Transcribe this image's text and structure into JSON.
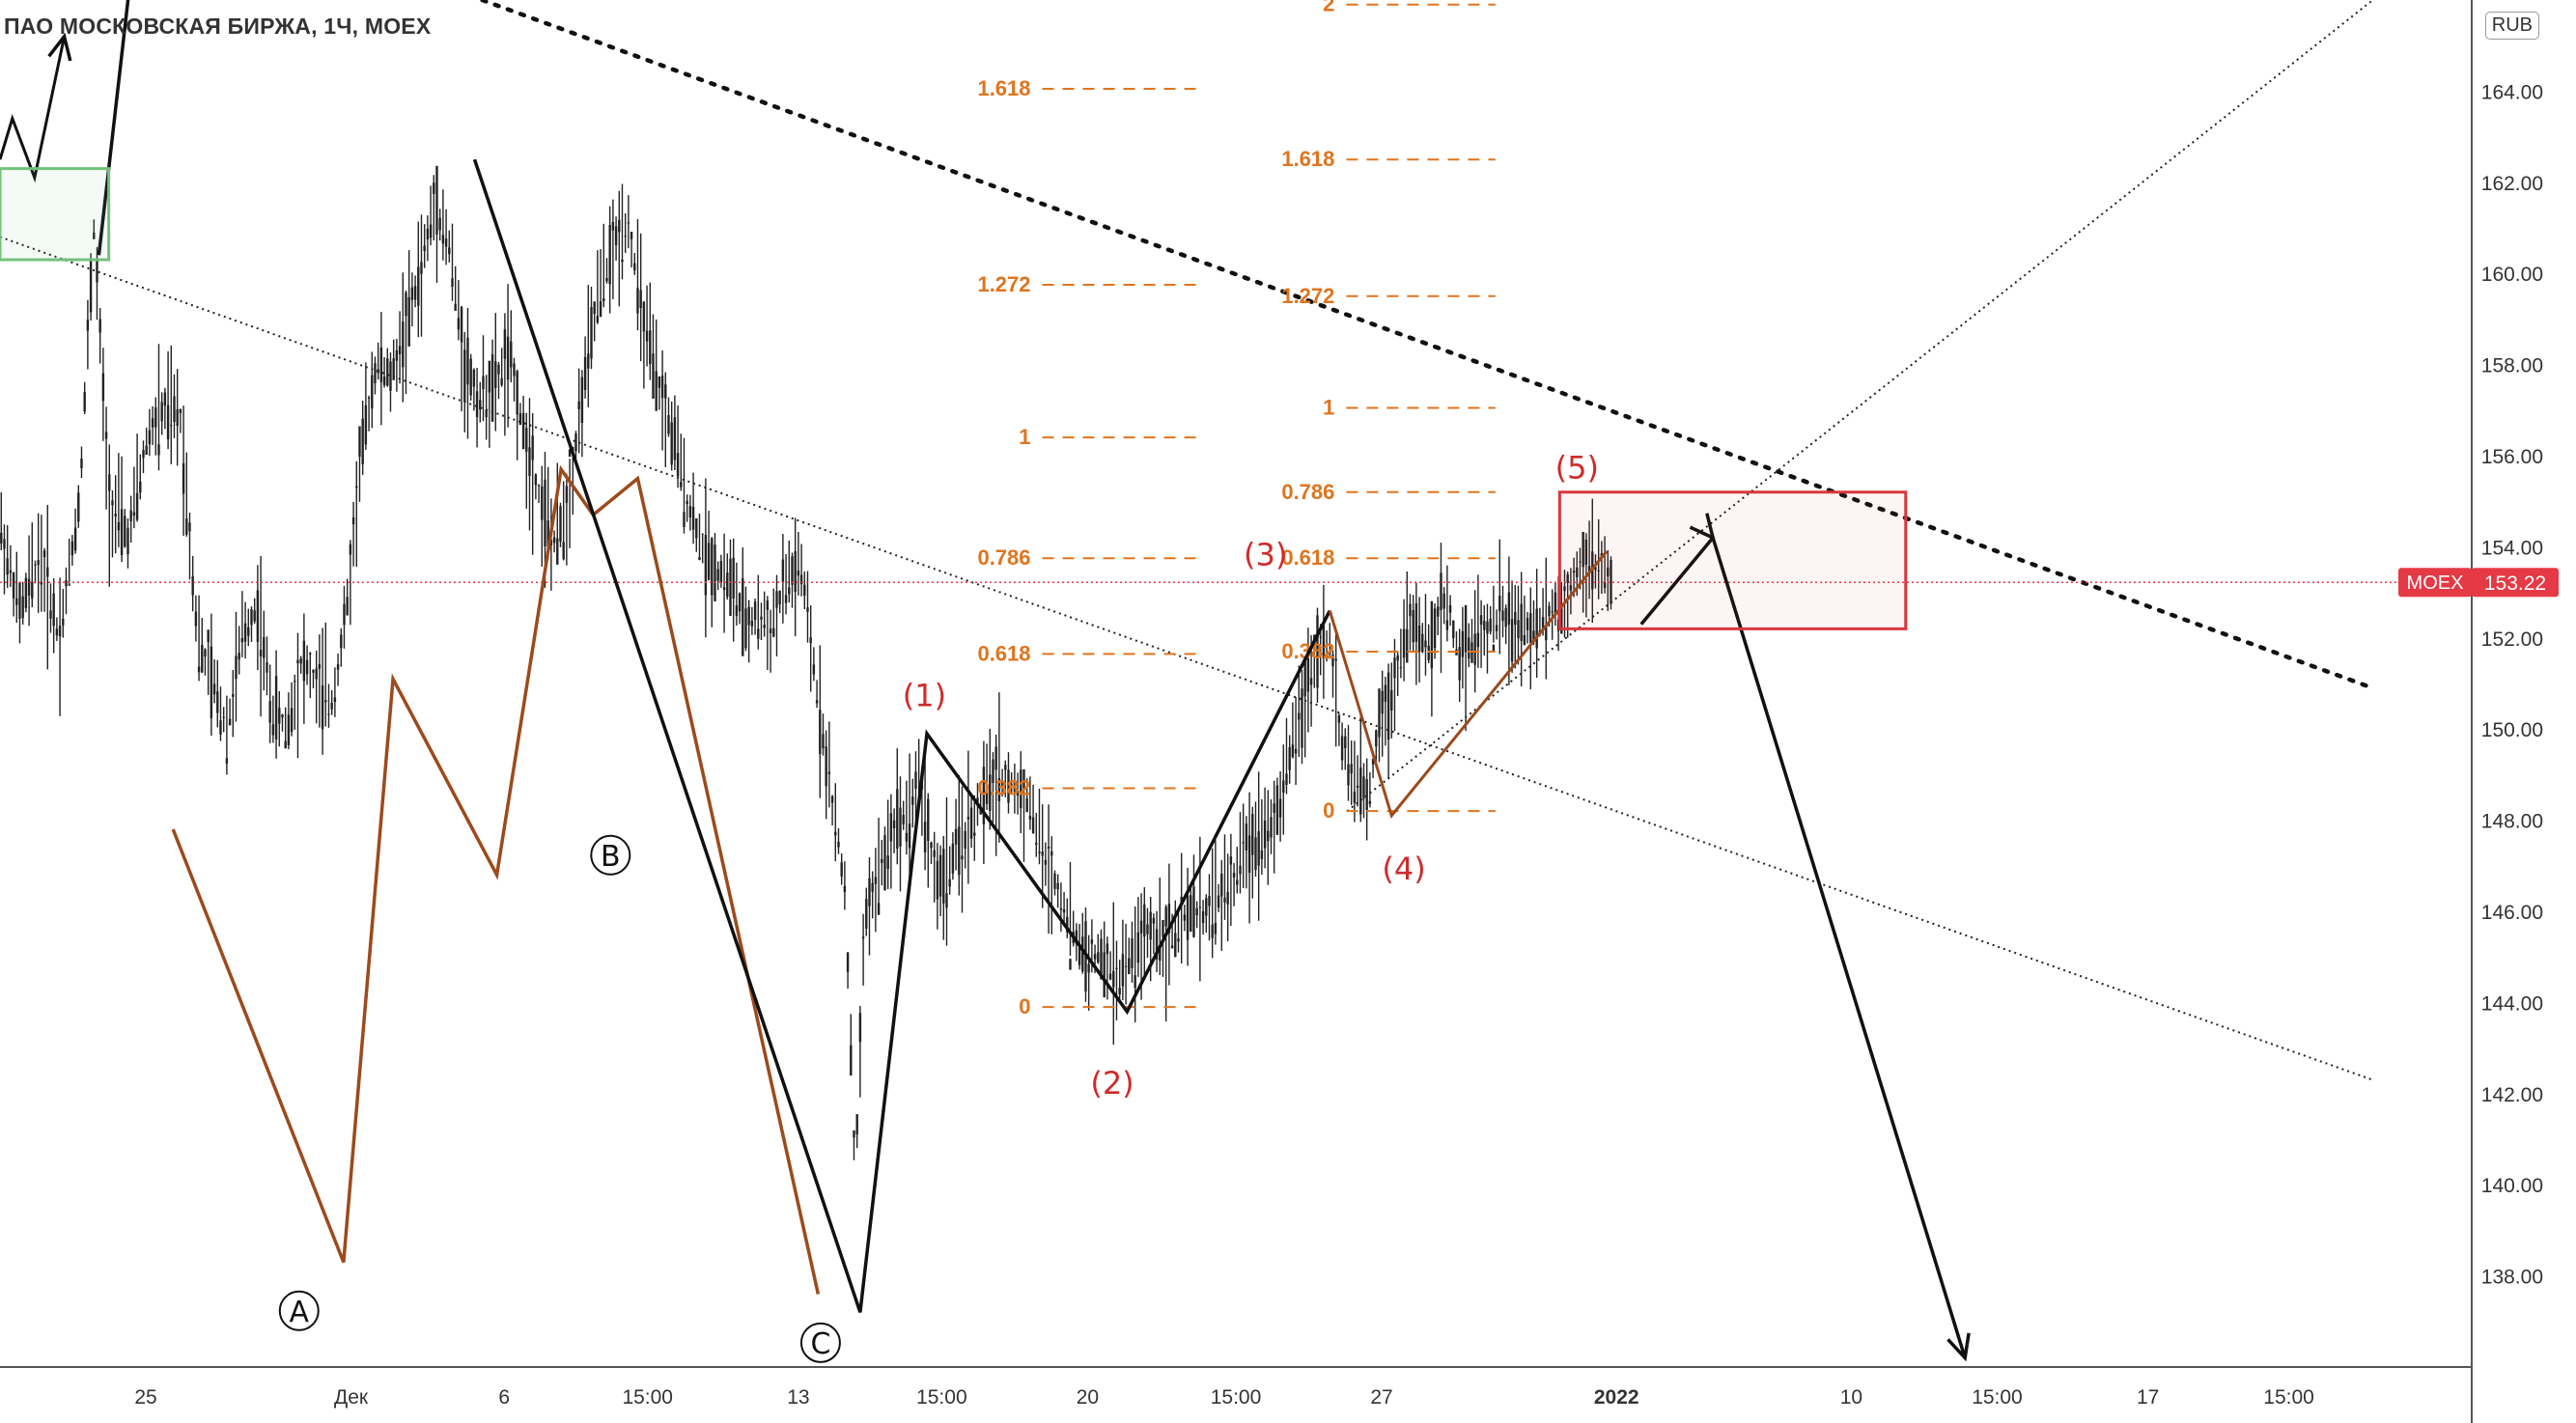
{
  "header": {
    "title": "ПАО МОСКОВСКАЯ БИРЖА, 1Ч, MOEX",
    "currency": "RUB"
  },
  "price_marker": {
    "symbol": "MOEX",
    "price": "153.22",
    "color": "#e53945"
  },
  "colors": {
    "candles": "#222222",
    "fib": "#e0741d",
    "wave_brown": "#9c4a1c",
    "wave_labels": "#cf2b2b",
    "green_box": "#72c27a",
    "red_box": "#d9363e"
  },
  "chart_data": {
    "type": "candlestick",
    "title": "",
    "ylim": [
      136,
      166
    ],
    "y_ticks": [
      138,
      140,
      142,
      144,
      146,
      148,
      150,
      152,
      154,
      156,
      158,
      160,
      162,
      164
    ],
    "y_tick_labels": [
      "138.00",
      "140.00",
      "142.00",
      "144.00",
      "146.00",
      "148.00",
      "150.00",
      "152.00",
      "154.00",
      "156.00",
      "158.00",
      "160.00",
      "162.00",
      "164.00"
    ],
    "x_range": [
      0,
      1000
    ],
    "x_ticks": [
      {
        "x": 59,
        "label": "25"
      },
      {
        "x": 142,
        "label": "Дек"
      },
      {
        "x": 204,
        "label": "6"
      },
      {
        "x": 262,
        "label": "15:00"
      },
      {
        "x": 323,
        "label": "13"
      },
      {
        "x": 381,
        "label": "15:00"
      },
      {
        "x": 440,
        "label": "20"
      },
      {
        "x": 500,
        "label": "15:00"
      },
      {
        "x": 559,
        "label": "27"
      },
      {
        "x": 654,
        "label": "2022"
      },
      {
        "x": 749,
        "label": "10"
      },
      {
        "x": 808,
        "label": "15:00"
      },
      {
        "x": 869,
        "label": "17"
      },
      {
        "x": 926,
        "label": "15:00"
      }
    ],
    "price_path": [
      [
        0,
        154.5
      ],
      [
        8,
        152.5
      ],
      [
        16,
        153.8
      ],
      [
        24,
        152
      ],
      [
        32,
        155
      ],
      [
        38,
        161
      ],
      [
        44,
        155
      ],
      [
        52,
        154.2
      ],
      [
        60,
        156.5
      ],
      [
        67,
        157
      ],
      [
        73,
        156.8
      ],
      [
        80,
        152
      ],
      [
        86,
        151
      ],
      [
        92,
        150
      ],
      [
        98,
        152
      ],
      [
        104,
        152.7
      ],
      [
        110,
        150.4
      ],
      [
        116,
        150
      ],
      [
        122,
        151.5
      ],
      [
        128,
        151
      ],
      [
        134,
        150.5
      ],
      [
        140,
        152.5
      ],
      [
        146,
        156
      ],
      [
        152,
        158
      ],
      [
        158,
        157.7
      ],
      [
        164,
        158.8
      ],
      [
        170,
        160
      ],
      [
        176,
        161.6
      ],
      [
        182,
        160.5
      ],
      [
        188,
        158
      ],
      [
        194,
        157.2
      ],
      [
        200,
        157.5
      ],
      [
        206,
        158.2
      ],
      [
        212,
        156.5
      ],
      [
        218,
        155.2
      ],
      [
        224,
        154
      ],
      [
        230,
        155
      ],
      [
        236,
        157.5
      ],
      [
        242,
        159.5
      ],
      [
        248,
        160.5
      ],
      [
        254,
        161.2
      ],
      [
        260,
        159
      ],
      [
        266,
        157.5
      ],
      [
        272,
        156.5
      ],
      [
        278,
        155
      ],
      [
        284,
        154
      ],
      [
        290,
        153.5
      ],
      [
        296,
        153.2
      ],
      [
        302,
        152.2
      ],
      [
        306,
        152.5
      ],
      [
        312,
        152.2
      ],
      [
        318,
        153.2
      ],
      [
        324,
        153.5
      ],
      [
        330,
        151
      ],
      [
        334,
        149.5
      ],
      [
        338,
        147.8
      ],
      [
        342,
        146.5
      ],
      [
        346,
        140
      ],
      [
        350,
        146
      ],
      [
        356,
        146.8
      ],
      [
        362,
        148
      ],
      [
        368,
        148.2
      ],
      [
        372,
        149
      ],
      [
        376,
        147.5
      ],
      [
        380,
        146.5
      ],
      [
        386,
        147.2
      ],
      [
        392,
        147.8
      ],
      [
        398,
        148.5
      ],
      [
        404,
        149
      ],
      [
        410,
        148.7
      ],
      [
        416,
        148.5
      ],
      [
        422,
        147.2
      ],
      [
        428,
        146.5
      ],
      [
        434,
        145.5
      ],
      [
        440,
        145
      ],
      [
        446,
        145
      ],
      [
        452,
        144.5
      ],
      [
        458,
        145
      ],
      [
        464,
        145.5
      ],
      [
        470,
        145.5
      ],
      [
        476,
        145.5
      ],
      [
        482,
        146
      ],
      [
        488,
        146
      ],
      [
        494,
        146.3
      ],
      [
        500,
        146.8
      ],
      [
        506,
        147.5
      ],
      [
        512,
        147.8
      ],
      [
        518,
        148.3
      ],
      [
        524,
        150
      ],
      [
        530,
        151
      ],
      [
        534,
        152
      ],
      [
        538,
        151.8
      ],
      [
        542,
        150
      ],
      [
        546,
        149
      ],
      [
        550,
        148.7
      ],
      [
        554,
        148.5
      ],
      [
        558,
        150.3
      ],
      [
        562,
        150.5
      ],
      [
        566,
        151.5
      ],
      [
        570,
        152.5
      ],
      [
        574,
        152
      ],
      [
        578,
        151.7
      ],
      [
        582,
        152.5
      ],
      [
        586,
        152.8
      ],
      [
        590,
        151.6
      ],
      [
        596,
        152
      ],
      [
        602,
        152.3
      ],
      [
        608,
        152.5
      ],
      [
        614,
        152.2
      ],
      [
        620,
        152.2
      ],
      [
        626,
        152.6
      ],
      [
        632,
        152.7
      ],
      [
        636,
        153.2
      ],
      [
        640,
        153.8
      ],
      [
        644,
        153.5
      ],
      [
        648,
        153.5
      ],
      [
        652,
        153.22
      ]
    ],
    "fib_sets": [
      {
        "x": [
          417,
          485
        ],
        "levels": [
          {
            "label": "1.618",
            "value": 164.05
          },
          {
            "label": "1.272",
            "value": 159.75
          },
          {
            "label": "1",
            "value": 156.4
          },
          {
            "label": "0.786",
            "value": 153.75
          },
          {
            "label": "0.618",
            "value": 151.65
          },
          {
            "label": "0.382",
            "value": 148.7
          },
          {
            "label": "0",
            "value": 143.9
          }
        ]
      },
      {
        "x": [
          540,
          605
        ],
        "levels": [
          {
            "label": "2",
            "value": 165.9
          },
          {
            "label": "1.618",
            "value": 162.5
          },
          {
            "label": "1.272",
            "value": 159.5
          },
          {
            "label": "1",
            "value": 157.05
          },
          {
            "label": "0.786",
            "value": 155.2
          },
          {
            "label": "0.618",
            "value": 153.75
          },
          {
            "label": "0.382",
            "value": 151.7
          },
          {
            "label": "0",
            "value": 148.2
          }
        ]
      }
    ],
    "wave_labels_circled": [
      {
        "label": "A",
        "x": 121,
        "y": 137.0
      },
      {
        "label": "B",
        "x": 247,
        "y": 147.0
      },
      {
        "label": "C",
        "x": 332,
        "y": 136.3
      }
    ],
    "wave_labels": [
      {
        "label": "(1)",
        "x": 374,
        "y": 150.5
      },
      {
        "label": "(2)",
        "x": 450,
        "y": 142.0
      },
      {
        "label": "(3)",
        "x": 512,
        "y": 153.6
      },
      {
        "label": "(4)",
        "x": 568,
        "y": 146.7
      },
      {
        "label": "(5)",
        "x": 638,
        "y": 155.5
      }
    ]
  }
}
